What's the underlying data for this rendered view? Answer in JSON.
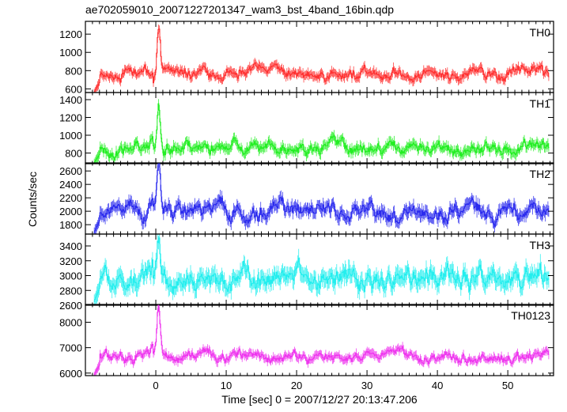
{
  "chart_data": {
    "type": "line",
    "title": "ae702059010_20071227201347_wam3_bst_4band_16bin.qdp",
    "xlabel": "Time [sec] 0 = 2007/12/27 20:13:47.206",
    "ylabel": "Counts/sec",
    "xlim": [
      -10,
      56.5
    ],
    "x_ticks": [
      0,
      10,
      20,
      30,
      40,
      50
    ],
    "x_tick_labels": [
      "0",
      "10",
      "20",
      "30",
      "40",
      "50"
    ],
    "grid": false,
    "legend": "none",
    "data_start": -8.8,
    "data_end": 55.8,
    "series": [
      {
        "name": "TH0",
        "color": "#ff3030",
        "ylim": [
          560,
          1340
        ],
        "y_ticks": [
          600,
          800,
          1000,
          1200
        ],
        "baseline": 760,
        "noise": 40,
        "peak": 1290,
        "pre": 560,
        "seed": 11
      },
      {
        "name": "TH1",
        "color": "#22ee22",
        "ylim": [
          680,
          1480
        ],
        "y_ticks": [
          800,
          1000,
          1200,
          1400
        ],
        "baseline": 860,
        "noise": 45,
        "peak": 1440,
        "pre": 690,
        "seed": 23
      },
      {
        "name": "TH2",
        "color": "#2a2aee",
        "ylim": [
          1660,
          2720
        ],
        "y_ticks": [
          1800,
          2000,
          2200,
          2400,
          2600
        ],
        "baseline": 2010,
        "noise": 75,
        "peak": 2680,
        "pre": 1680,
        "seed": 37
      },
      {
        "name": "TH3",
        "color": "#22eeee",
        "ylim": [
          2600,
          3560
        ],
        "y_ticks": [
          2600,
          2800,
          3000,
          3200,
          3400
        ],
        "baseline": 2980,
        "noise": 90,
        "peak": 3540,
        "pre": 2650,
        "seed": 53
      },
      {
        "name": "TH0123",
        "color": "#ee33ee",
        "ylim": [
          5900,
          8700
        ],
        "y_ticks": [
          6000,
          7000,
          8000
        ],
        "baseline": 6650,
        "noise": 130,
        "peak": 8600,
        "pre": 5920,
        "seed": 71
      }
    ]
  }
}
